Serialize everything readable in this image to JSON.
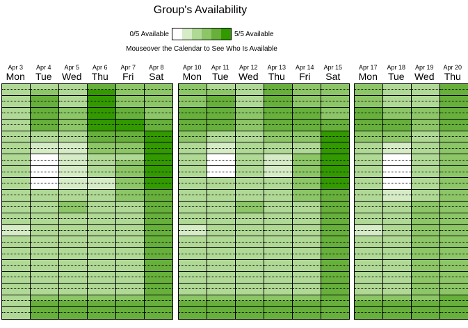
{
  "title": "Group's Availability",
  "legend": {
    "min_label": "0/5 Available",
    "max_label": "5/5 Available",
    "colors": [
      "#ffffff",
      "#d6ecc7",
      "#b0d996",
      "#8cc667",
      "#66b03b",
      "#339900"
    ]
  },
  "instruction": "Mouseover the Calendar to See Who Is Available",
  "palette": [
    "#ffffff",
    "#d6ecc7",
    "#b0d996",
    "#8cc667",
    "#66b03b",
    "#339900"
  ],
  "weeks": [
    {
      "days": [
        {
          "date": "Apr 3",
          "dow": "Mon",
          "levels": [
            2,
            2,
            2,
            2,
            2,
            2,
            2,
            2,
            2,
            2,
            2,
            2,
            2,
            2,
            2,
            2,
            2,
            2,
            2,
            2,
            2,
            2,
            2,
            2,
            1,
            1,
            2,
            2,
            2,
            2,
            2,
            2,
            2,
            2,
            2,
            2,
            2,
            2,
            2,
            2
          ]
        },
        {
          "date": "Apr 4",
          "dow": "Tue",
          "levels": [
            2,
            3,
            4,
            4,
            4,
            4,
            4,
            4,
            2,
            2,
            1,
            1,
            0,
            0,
            0,
            0,
            0,
            0,
            2,
            2,
            2,
            2,
            2,
            2,
            2,
            2,
            2,
            2,
            2,
            2,
            2,
            2,
            2,
            2,
            2,
            2,
            3,
            4,
            4,
            4
          ]
        },
        {
          "date": "Apr 5",
          "dow": "Wed",
          "levels": [
            2,
            2,
            2,
            2,
            3,
            3,
            3,
            3,
            2,
            2,
            1,
            1,
            1,
            1,
            1,
            1,
            1,
            1,
            2,
            2,
            3,
            3,
            2,
            2,
            2,
            2,
            2,
            2,
            2,
            2,
            2,
            2,
            2,
            2,
            2,
            2,
            3,
            4,
            4,
            4
          ]
        },
        {
          "date": "Apr 6",
          "dow": "Thu",
          "levels": [
            4,
            5,
            5,
            5,
            5,
            5,
            5,
            5,
            4,
            4,
            3,
            3,
            2,
            2,
            2,
            2,
            1,
            1,
            2,
            2,
            2,
            2,
            2,
            2,
            2,
            2,
            2,
            2,
            2,
            2,
            2,
            2,
            2,
            2,
            2,
            2,
            3,
            4,
            4,
            4
          ]
        },
        {
          "date": "Apr 7",
          "dow": "Fri",
          "levels": [
            3,
            3,
            3,
            3,
            4,
            4,
            5,
            5,
            4,
            4,
            3,
            3,
            2,
            3,
            3,
            3,
            3,
            3,
            3,
            3,
            2,
            2,
            2,
            2,
            2,
            2,
            2,
            2,
            2,
            2,
            2,
            2,
            2,
            2,
            2,
            2,
            3,
            4,
            4,
            4
          ]
        },
        {
          "date": "Apr 8",
          "dow": "Sat",
          "levels": [
            3,
            3,
            3,
            3,
            3,
            3,
            4,
            4,
            5,
            5,
            5,
            5,
            5,
            5,
            5,
            5,
            5,
            5,
            4,
            4,
            4,
            4,
            4,
            4,
            4,
            4,
            4,
            4,
            4,
            4,
            4,
            4,
            4,
            4,
            4,
            4,
            4,
            4,
            4,
            4
          ]
        }
      ]
    },
    {
      "days": [
        {
          "date": "Apr 10",
          "dow": "Mon",
          "levels": [
            3,
            3,
            3,
            3,
            4,
            4,
            4,
            4,
            3,
            3,
            2,
            2,
            2,
            2,
            2,
            2,
            2,
            2,
            2,
            2,
            2,
            2,
            2,
            2,
            1,
            1,
            2,
            2,
            2,
            2,
            2,
            2,
            2,
            2,
            2,
            2,
            3,
            4,
            4,
            4
          ]
        },
        {
          "date": "Apr 11",
          "dow": "Tue",
          "levels": [
            2,
            3,
            4,
            4,
            4,
            4,
            4,
            4,
            2,
            2,
            1,
            1,
            0,
            0,
            0,
            0,
            2,
            2,
            2,
            2,
            2,
            2,
            2,
            2,
            2,
            2,
            2,
            2,
            2,
            2,
            2,
            2,
            2,
            2,
            2,
            2,
            3,
            4,
            4,
            4
          ]
        },
        {
          "date": "Apr 12",
          "dow": "Wed",
          "levels": [
            2,
            2,
            2,
            2,
            3,
            3,
            3,
            3,
            2,
            2,
            2,
            2,
            2,
            2,
            2,
            2,
            2,
            2,
            2,
            2,
            3,
            3,
            2,
            2,
            2,
            2,
            2,
            2,
            2,
            2,
            2,
            2,
            2,
            2,
            2,
            2,
            3,
            4,
            4,
            4
          ]
        },
        {
          "date": "Apr 13",
          "dow": "Thu",
          "levels": [
            4,
            4,
            4,
            4,
            4,
            4,
            4,
            4,
            3,
            3,
            2,
            2,
            1,
            1,
            1,
            1,
            2,
            2,
            2,
            2,
            2,
            2,
            2,
            2,
            2,
            2,
            2,
            2,
            2,
            2,
            2,
            2,
            2,
            2,
            2,
            2,
            3,
            4,
            4,
            4
          ]
        },
        {
          "date": "Apr 14",
          "dow": "Fri",
          "levels": [
            3,
            3,
            3,
            3,
            4,
            4,
            4,
            4,
            3,
            3,
            2,
            2,
            3,
            3,
            3,
            3,
            3,
            3,
            3,
            3,
            2,
            2,
            2,
            2,
            2,
            2,
            2,
            2,
            2,
            2,
            2,
            2,
            2,
            2,
            2,
            2,
            3,
            4,
            4,
            4
          ]
        },
        {
          "date": "Apr 15",
          "dow": "Sat",
          "levels": [
            3,
            3,
            3,
            3,
            3,
            3,
            4,
            4,
            5,
            5,
            5,
            5,
            5,
            5,
            5,
            5,
            5,
            5,
            4,
            4,
            4,
            4,
            4,
            4,
            4,
            4,
            4,
            4,
            4,
            4,
            4,
            4,
            4,
            4,
            4,
            4,
            4,
            4,
            4,
            4
          ]
        }
      ]
    },
    {
      "days": [
        {
          "date": "Apr 17",
          "dow": "Mon",
          "levels": [
            3,
            3,
            3,
            3,
            4,
            4,
            4,
            4,
            3,
            3,
            2,
            2,
            2,
            2,
            2,
            2,
            2,
            2,
            2,
            2,
            2,
            2,
            2,
            2,
            1,
            1,
            2,
            2,
            2,
            2,
            2,
            2,
            2,
            2,
            2,
            2,
            3,
            4,
            4,
            4
          ]
        },
        {
          "date": "Apr 18",
          "dow": "Tue",
          "levels": [
            2,
            2,
            2,
            2,
            3,
            3,
            4,
            4,
            3,
            3,
            1,
            1,
            0,
            0,
            0,
            0,
            0,
            0,
            1,
            1,
            2,
            2,
            2,
            2,
            2,
            2,
            2,
            2,
            2,
            2,
            2,
            2,
            2,
            2,
            2,
            2,
            3,
            4,
            4,
            4
          ]
        },
        {
          "date": "Apr 19",
          "dow": "Wed",
          "levels": [
            2,
            2,
            2,
            2,
            3,
            3,
            3,
            3,
            2,
            2,
            2,
            2,
            2,
            2,
            2,
            2,
            2,
            2,
            2,
            2,
            3,
            3,
            3,
            3,
            3,
            3,
            3,
            3,
            3,
            3,
            3,
            3,
            3,
            3,
            3,
            3,
            3,
            4,
            4,
            4
          ]
        },
        {
          "date": "Apr 20",
          "dow": "Thu",
          "levels": [
            4,
            4,
            4,
            4,
            4,
            4,
            4,
            4,
            3,
            3,
            3,
            3,
            3,
            3,
            3,
            3,
            3,
            3,
            3,
            3,
            3,
            3,
            3,
            3,
            3,
            3,
            3,
            3,
            3,
            3,
            3,
            3,
            3,
            3,
            3,
            3,
            4,
            4,
            4,
            4
          ]
        }
      ]
    }
  ]
}
